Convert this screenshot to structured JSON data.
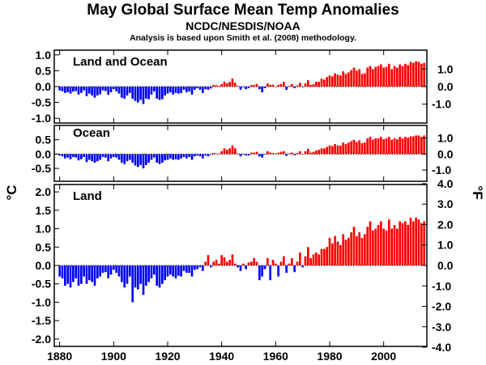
{
  "title": "May Global Surface Mean Temp Anomalies",
  "subtitle": "NCDC/NESDIS/NOAA",
  "note": "Analysis is based upon Smith et al. (2008) methodology.",
  "left_unit": "°C",
  "right_unit": "°F",
  "colors": {
    "positive": "#ff0000",
    "negative": "#0000ff",
    "axis": "#000000"
  },
  "chart_data": [
    {
      "type": "bar",
      "name": "Land and Ocean",
      "label": "Land and Ocean",
      "x_start": 1880,
      "ylim": [
        -1.15,
        1.15
      ],
      "yticks": [
        "1.0",
        "0.5",
        "0.0",
        "-0.5",
        "-1.0"
      ],
      "yticks_right": [
        "1.0",
        "0.0",
        "-1.0"
      ],
      "values": [
        -0.12,
        -0.15,
        -0.2,
        -0.18,
        -0.22,
        -0.16,
        -0.14,
        -0.25,
        -0.2,
        -0.12,
        -0.3,
        -0.22,
        -0.28,
        -0.35,
        -0.28,
        -0.24,
        -0.12,
        -0.14,
        -0.26,
        -0.18,
        -0.08,
        -0.15,
        -0.22,
        -0.35,
        -0.38,
        -0.28,
        -0.2,
        -0.38,
        -0.45,
        -0.5,
        -0.42,
        -0.55,
        -0.38,
        -0.4,
        -0.25,
        -0.15,
        -0.38,
        -0.42,
        -0.4,
        -0.28,
        -0.22,
        -0.18,
        -0.25,
        -0.2,
        -0.22,
        -0.2,
        -0.1,
        -0.18,
        -0.15,
        -0.25,
        -0.1,
        -0.05,
        -0.1,
        -0.2,
        -0.08,
        -0.1,
        -0.06,
        0.05,
        0.04,
        0.02,
        0.08,
        0.15,
        0.1,
        0.15,
        0.25,
        0.12,
        0.02,
        -0.1,
        -0.02,
        -0.08,
        -0.05,
        0.05,
        0.05,
        0.08,
        -0.08,
        -0.18,
        -0.05,
        0.1,
        0.05,
        0.06,
        0.0,
        0.05,
        0.08,
        0.15,
        -0.1,
        0.02,
        0.08,
        -0.05,
        0.04,
        0.12,
        -0.02,
        0.1,
        0.2,
        0.05,
        0.08,
        0.15,
        0.15,
        0.25,
        0.22,
        0.3,
        0.35,
        0.32,
        0.42,
        0.38,
        0.35,
        0.48,
        0.4,
        0.45,
        0.52,
        0.6,
        0.5,
        0.55,
        0.4,
        0.42,
        0.6,
        0.65,
        0.55,
        0.62,
        0.65,
        0.7,
        0.6,
        0.62,
        0.72,
        0.55,
        0.65,
        0.6,
        0.7,
        0.65,
        0.72,
        0.68,
        0.78,
        0.75,
        0.8,
        0.78,
        0.72,
        0.75
      ]
    },
    {
      "type": "bar",
      "name": "Ocean",
      "label": "Ocean",
      "x_start": 1880,
      "ylim": [
        -0.95,
        1.0
      ],
      "yticks": [
        "0.5",
        "0.0",
        "-0.5"
      ],
      "yticks_right": [
        "1.0",
        "0.0",
        "-1.0"
      ],
      "values": [
        -0.05,
        -0.08,
        -0.15,
        -0.12,
        -0.18,
        -0.1,
        -0.12,
        -0.22,
        -0.18,
        -0.1,
        -0.28,
        -0.2,
        -0.25,
        -0.3,
        -0.25,
        -0.2,
        -0.1,
        -0.12,
        -0.25,
        -0.15,
        -0.1,
        -0.12,
        -0.2,
        -0.3,
        -0.35,
        -0.25,
        -0.2,
        -0.3,
        -0.4,
        -0.45,
        -0.38,
        -0.5,
        -0.38,
        -0.3,
        -0.2,
        -0.12,
        -0.3,
        -0.35,
        -0.3,
        -0.22,
        -0.2,
        -0.15,
        -0.2,
        -0.18,
        -0.2,
        -0.15,
        -0.1,
        -0.15,
        -0.1,
        -0.2,
        -0.08,
        -0.05,
        -0.08,
        -0.15,
        -0.05,
        -0.08,
        -0.02,
        0.04,
        0.02,
        0.02,
        0.1,
        0.2,
        0.15,
        0.2,
        0.3,
        0.2,
        0.02,
        -0.08,
        -0.02,
        -0.05,
        -0.05,
        0.05,
        0.05,
        0.08,
        -0.08,
        -0.12,
        -0.02,
        0.1,
        0.05,
        0.04,
        0.02,
        0.05,
        0.08,
        0.1,
        -0.06,
        0.02,
        0.05,
        -0.04,
        0.04,
        0.1,
        0.0,
        0.1,
        0.18,
        0.05,
        0.08,
        0.12,
        0.15,
        0.2,
        0.2,
        0.25,
        0.3,
        0.28,
        0.35,
        0.3,
        0.3,
        0.4,
        0.35,
        0.4,
        0.45,
        0.5,
        0.42,
        0.48,
        0.38,
        0.4,
        0.55,
        0.6,
        0.5,
        0.55,
        0.55,
        0.6,
        0.52,
        0.55,
        0.6,
        0.5,
        0.55,
        0.52,
        0.6,
        0.55,
        0.6,
        0.58,
        0.62,
        0.62,
        0.65,
        0.65,
        0.6,
        0.65
      ]
    },
    {
      "type": "bar",
      "name": "Land",
      "label": "Land",
      "x_start": 1880,
      "xlim": [
        1878,
        2016
      ],
      "xticks": [
        "1880",
        "1900",
        "1920",
        "1940",
        "1960",
        "1980",
        "2000"
      ],
      "ylim": [
        -2.2,
        2.2
      ],
      "yticks": [
        "2.0",
        "1.5",
        "1.0",
        "0.5",
        "0.0",
        "-0.5",
        "-1.0",
        "-1.5",
        "-2.0"
      ],
      "yticks_right": [
        "4.0",
        "3.0",
        "2.0",
        "1.0",
        "0.0",
        "-1.0",
        "-2.0",
        "-3.0",
        "-4.0"
      ],
      "values": [
        -0.3,
        -0.35,
        -0.55,
        -0.5,
        -0.6,
        -0.45,
        -0.35,
        -0.55,
        -0.5,
        -0.3,
        -0.5,
        -0.4,
        -0.45,
        -0.55,
        -0.35,
        -0.3,
        -0.2,
        -0.18,
        -0.35,
        -0.25,
        -0.12,
        -0.2,
        -0.3,
        -0.45,
        -0.6,
        -0.5,
        -0.3,
        -1.0,
        -0.6,
        -0.65,
        -0.5,
        -0.8,
        -0.55,
        -0.45,
        -0.35,
        -0.25,
        -0.55,
        -0.6,
        -0.5,
        -0.4,
        -0.3,
        -0.25,
        -0.3,
        -0.35,
        -0.28,
        -0.3,
        -0.15,
        -0.2,
        -0.2,
        -0.3,
        -0.12,
        -0.1,
        -0.05,
        -0.15,
        0.1,
        0.28,
        -0.05,
        0.1,
        0.15,
        0.05,
        0.28,
        0.22,
        0.1,
        0.15,
        0.3,
        0.05,
        -0.05,
        -0.15,
        0.05,
        -0.1,
        0.08,
        0.1,
        0.2,
        0.1,
        -0.4,
        -0.3,
        -0.1,
        0.2,
        -0.4,
        0.15,
        0.05,
        -0.3,
        0.1,
        0.25,
        -0.2,
        0.05,
        0.2,
        -0.18,
        0.1,
        0.35,
        -0.05,
        0.25,
        0.5,
        0.2,
        0.3,
        0.35,
        0.3,
        0.45,
        0.45,
        0.5,
        0.75,
        0.6,
        0.8,
        0.65,
        0.55,
        0.85,
        0.7,
        0.75,
        0.9,
        1.05,
        0.8,
        0.9,
        0.75,
        0.85,
        1.05,
        1.2,
        0.95,
        1.0,
        1.1,
        1.2,
        1.0,
        0.95,
        1.25,
        1.0,
        1.1,
        1.0,
        1.2,
        1.15,
        1.2,
        1.1,
        1.3,
        1.2,
        1.3,
        1.25,
        1.15,
        1.2
      ]
    }
  ]
}
